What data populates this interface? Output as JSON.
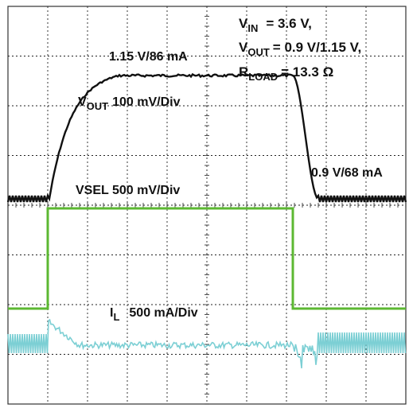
{
  "chart_data": {
    "type": "line",
    "title": "",
    "xlabel": "",
    "ylabel": "",
    "grid": true,
    "annotations": {
      "vin_label": "V",
      "vin_sub": "IN",
      "vin_value": "= 3.6 V,",
      "vout_label": "V",
      "vout_sub": "OUT",
      "vout_value": "= 0.9 V/1.15 V,",
      "rload_label": "R",
      "rload_sub": "LOAD",
      "rload_value": "= 13.3 Ω",
      "vout_high": "1.15 V/86 mA",
      "vout_low": "0.9 V/68 mA",
      "vout_scale_main": "V",
      "vout_scale_sub": "OUT",
      "vout_scale_rest": "100 mV/Div",
      "vsel_scale": "VSEL 500 mV/Div",
      "il_scale_main": "I",
      "il_scale_sub": "L",
      "il_scale_rest": "500 mA/Div"
    },
    "series": [
      {
        "name": "VOUT",
        "color": "#111111",
        "low": "0.9 V",
        "high": "1.15 V"
      },
      {
        "name": "VSEL",
        "color": "#5cb832"
      },
      {
        "name": "IL",
        "color": "#7ccfd4"
      }
    ]
  }
}
